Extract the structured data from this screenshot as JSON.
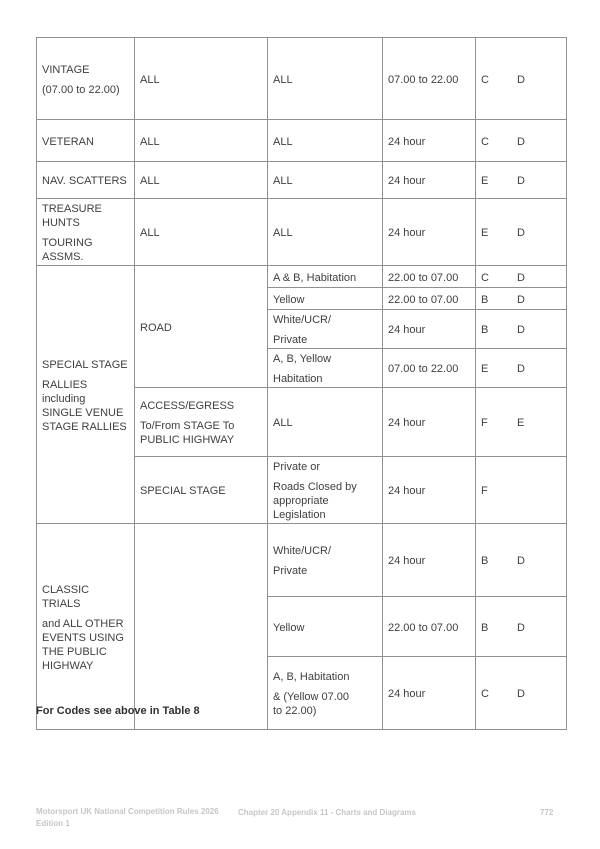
{
  "colors": {
    "table_border": "#909090",
    "table_text": "#3f3f3f",
    "footer_text": "#c6c6c6"
  },
  "table": {
    "cells": {
      "r1c1": {
        "paras": [
          [
            "VINTAGE"
          ],
          [
            "(07.00 to 22.00)"
          ]
        ]
      },
      "r1c2": {
        "paras": [
          [
            "ALL"
          ]
        ]
      },
      "r1c3": {
        "paras": [
          [
            "ALL"
          ]
        ]
      },
      "r1c4": {
        "paras": [
          [
            "07.00 to 22.00"
          ]
        ]
      },
      "r1c5": {
        "codes": [
          "C",
          "D"
        ]
      },
      "r2c1": {
        "paras": [
          [
            "VETERAN"
          ]
        ]
      },
      "r2c2": {
        "paras": [
          [
            "ALL"
          ]
        ]
      },
      "r2c3": {
        "paras": [
          [
            "ALL"
          ]
        ]
      },
      "r2c4": {
        "paras": [
          [
            "24 hour"
          ]
        ]
      },
      "r2c5": {
        "codes": [
          "C",
          "D"
        ]
      },
      "r3c1": {
        "paras": [
          [
            "NAV. SCATTERS"
          ]
        ]
      },
      "r3c2": {
        "paras": [
          [
            "ALL"
          ]
        ]
      },
      "r3c3": {
        "paras": [
          [
            "ALL"
          ]
        ]
      },
      "r3c4": {
        "paras": [
          [
            "24 hour"
          ]
        ]
      },
      "r3c5": {
        "codes": [
          "E",
          "D"
        ]
      },
      "r4c1": {
        "paras": [
          [
            "TREASURE",
            "HUNTS"
          ],
          [
            "TOURING ASSMS."
          ]
        ]
      },
      "r4c2": {
        "paras": [
          [
            "ALL"
          ]
        ]
      },
      "r4c3": {
        "paras": [
          [
            "ALL"
          ]
        ]
      },
      "r4c4": {
        "paras": [
          [
            "24 hour"
          ]
        ]
      },
      "r4c5": {
        "codes": [
          "E",
          "D"
        ]
      },
      "r5c1": {
        "paras": [
          [
            "SPECIAL STAGE"
          ],
          [
            "RALLIES including",
            "SINGLE VENUE",
            "STAGE RALLIES"
          ]
        ]
      },
      "r5c2": {
        "paras": [
          [
            "ROAD"
          ]
        ]
      },
      "r5c3": {
        "paras": [
          [
            "A & B, Habitation"
          ]
        ]
      },
      "r5c4": {
        "paras": [
          [
            "22.00 to 07.00"
          ]
        ]
      },
      "r5c5": {
        "codes": [
          "C",
          "D"
        ]
      },
      "r6c3": {
        "paras": [
          [
            "Yellow"
          ]
        ]
      },
      "r6c4": {
        "paras": [
          [
            "22.00 to 07.00"
          ]
        ]
      },
      "r6c5": {
        "codes": [
          "B",
          "D"
        ]
      },
      "r7c3": {
        "paras": [
          [
            "White/UCR/"
          ],
          [
            "Private"
          ]
        ]
      },
      "r7c4": {
        "paras": [
          [
            "24 hour"
          ]
        ]
      },
      "r7c5": {
        "codes": [
          "B",
          "D"
        ]
      },
      "r8c3": {
        "paras": [
          [
            "A, B, Yellow"
          ],
          [
            "Habitation"
          ]
        ]
      },
      "r8c4": {
        "paras": [
          [
            "07.00 to 22.00"
          ]
        ]
      },
      "r8c5": {
        "codes": [
          "E",
          "D"
        ]
      },
      "r9c2": {
        "paras": [
          [
            "ACCESS/EGRESS"
          ],
          [
            "To/From STAGE To",
            "PUBLIC HIGHWAY"
          ]
        ]
      },
      "r9c3": {
        "paras": [
          [
            "ALL"
          ]
        ]
      },
      "r9c4": {
        "paras": [
          [
            "24 hour"
          ]
        ]
      },
      "r9c5": {
        "codes": [
          "F",
          "E"
        ]
      },
      "r10c2": {
        "paras": [
          [
            "SPECIAL STAGE"
          ]
        ]
      },
      "r10c3": {
        "paras": [
          [
            "Private or"
          ],
          [
            "Roads Closed by",
            "appropriate Legislation"
          ]
        ]
      },
      "r10c4": {
        "paras": [
          [
            "24 hour"
          ]
        ]
      },
      "r10c5": {
        "codes": [
          "F"
        ]
      },
      "r11c1": {
        "paras": [
          [
            "CLASSIC TRIALS"
          ],
          [
            "and ALL OTHER",
            "EVENTS USING",
            "THE PUBLIC",
            "HIGHWAY"
          ]
        ]
      },
      "r11c2": {
        "paras": []
      },
      "r11c3": {
        "paras": [
          [
            "White/UCR/"
          ],
          [
            "Private"
          ]
        ]
      },
      "r11c4": {
        "paras": [
          [
            "24 hour"
          ]
        ]
      },
      "r11c5": {
        "codes": [
          "B",
          "D"
        ]
      },
      "r12c3": {
        "paras": [
          [
            "Yellow"
          ]
        ]
      },
      "r12c4": {
        "paras": [
          [
            "22.00 to 07.00"
          ]
        ]
      },
      "r12c5": {
        "codes": [
          "B",
          "D"
        ]
      },
      "r13c3": {
        "paras": [
          [
            "A, B, Habitation"
          ],
          [
            "& (Yellow 07.00",
            "to 22.00)"
          ]
        ]
      },
      "r13c4": {
        "paras": [
          [
            "24 hour"
          ]
        ]
      },
      "r13c5": {
        "codes": [
          "C",
          "D"
        ]
      }
    }
  },
  "footnote": "For Codes see above in Table 8",
  "footer": {
    "left_line1": "Motorsport UK National Competition Rules 2026",
    "left_line2": "Edition 1",
    "center": "Chapter 20 Appendix 11 - Charts and Diagrams",
    "page_number": "772"
  }
}
